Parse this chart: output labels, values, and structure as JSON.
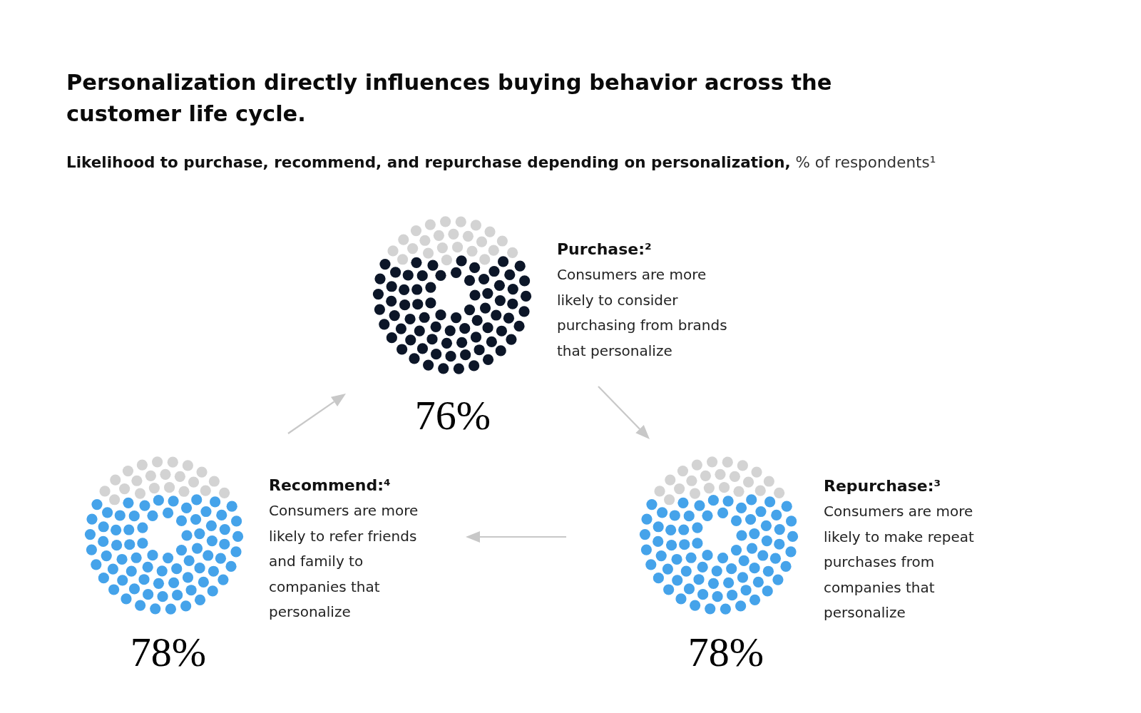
{
  "chart_data": [
    {
      "type": "other",
      "title": "Personalization directly influences buying behavior across the customer life cycle.",
      "subtitle": "Likelihood to purchase, recommend, and repurchase depending on personalization, % of respondents¹",
      "categories": [
        "Purchase:²"
      ],
      "values": [
        76
      ],
      "value_labels": [
        "76%"
      ],
      "colors": [
        "#0c1628"
      ],
      "annotations": [
        "Consumers are more likely to consider purchasing from brands that personalize"
      ]
    },
    {
      "type": "other",
      "categories": [
        "Recommend:⁴"
      ],
      "values": [
        78
      ],
      "value_labels": [
        "78%"
      ],
      "colors": [
        "#45a3ea"
      ],
      "annotations": [
        "Consumers are more likely to refer friends and family to companies that personalize"
      ]
    },
    {
      "type": "other",
      "categories": [
        "Repurchase:³"
      ],
      "values": [
        78
      ],
      "value_labels": [
        "78%"
      ],
      "colors": [
        "#45a3ea"
      ],
      "annotations": [
        "Consumers are more likely to make repeat purchases from companies that personalize"
      ]
    }
  ]
}
